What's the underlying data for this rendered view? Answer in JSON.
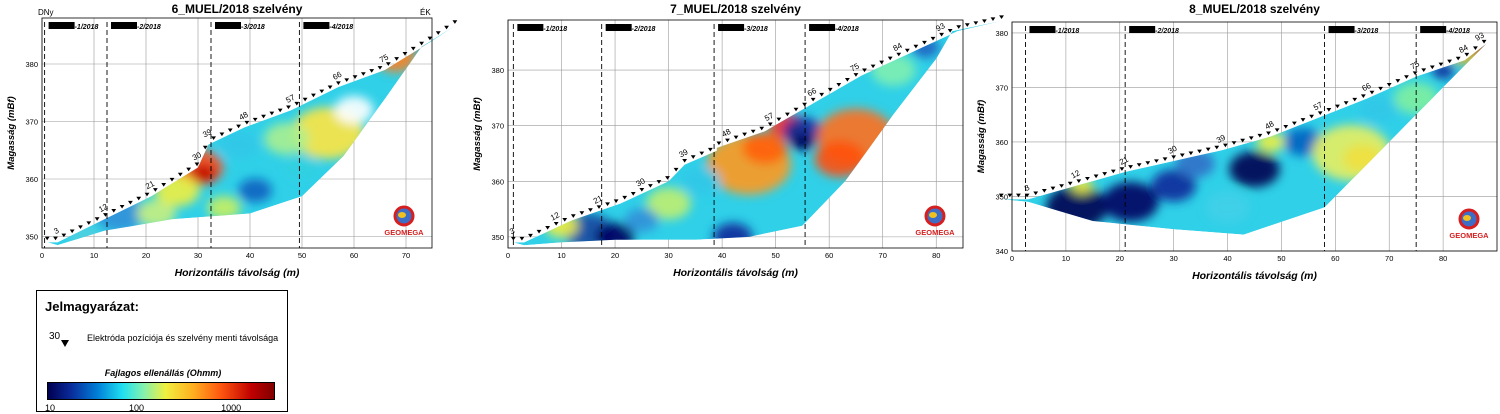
{
  "colors": {
    "electrode": "#000000",
    "grid": "#9a9a9a",
    "section_line": "#000000",
    "logo_red": "#d61f1f",
    "logo_blue": "#1f4fa8"
  },
  "chart_data": [
    {
      "type": "heatmap",
      "title": "6_MUEL/2018 szelvény",
      "xlabel": "Horizontális távolság (m)",
      "ylabel": "Magasság (mBf)",
      "xlim": [
        0,
        75
      ],
      "ylim": [
        348,
        388
      ],
      "x_ticks": [
        0,
        10,
        20,
        30,
        40,
        50,
        60,
        70
      ],
      "y_ticks": [
        350,
        360,
        370,
        380
      ],
      "direction_left": "DNy",
      "direction_right": "ÉK",
      "surface": [
        [
          1,
          349
        ],
        [
          3,
          349
        ],
        [
          12,
          353
        ],
        [
          21,
          357
        ],
        [
          30,
          362
        ],
        [
          32,
          366
        ],
        [
          39,
          369
        ],
        [
          48,
          372
        ],
        [
          57,
          376
        ],
        [
          66,
          379
        ],
        [
          75,
          384
        ],
        [
          80,
          387
        ]
      ],
      "bottom": [
        [
          3,
          348.5
        ],
        [
          12,
          351
        ],
        [
          25,
          353
        ],
        [
          40,
          354
        ],
        [
          50,
          357
        ],
        [
          58,
          364
        ],
        [
          66,
          374
        ],
        [
          73,
          383
        ]
      ],
      "crossings": [
        {
          "x": 0.5,
          "label": "-1/2018"
        },
        {
          "x": 12.5,
          "label": "-2/2018"
        },
        {
          "x": 32.5,
          "label": "-3/2018"
        },
        {
          "x": 49.5,
          "label": "-4/2018"
        }
      ],
      "electrode_labels": [
        {
          "x": 3,
          "label": "3"
        },
        {
          "x": 12,
          "label": "12"
        },
        {
          "x": 21,
          "label": "21"
        },
        {
          "x": 30,
          "label": "30"
        },
        {
          "x": 32,
          "label": "39"
        },
        {
          "x": 39,
          "label": "48"
        },
        {
          "x": 48,
          "label": "57"
        },
        {
          "x": 57,
          "label": "66"
        },
        {
          "x": 66,
          "label": "75"
        }
      ],
      "logo_text": "GEOMEGA"
    },
    {
      "type": "heatmap",
      "title": "7_MUEL/2018 szelvény",
      "xlabel": "Horizontális távolság (m)",
      "ylabel": "Magasság (mBf)",
      "xlim": [
        0,
        85
      ],
      "ylim": [
        348,
        389
      ],
      "x_ticks": [
        0,
        10,
        20,
        30,
        40,
        50,
        60,
        70,
        80
      ],
      "y_ticks": [
        350,
        360,
        370,
        380
      ],
      "surface": [
        [
          1,
          349
        ],
        [
          3,
          349
        ],
        [
          12,
          353
        ],
        [
          21,
          356
        ],
        [
          30,
          360
        ],
        [
          33,
          363
        ],
        [
          39,
          365.5
        ],
        [
          39,
          366
        ],
        [
          48,
          369
        ],
        [
          57,
          374
        ],
        [
          66,
          379
        ],
        [
          75,
          383
        ],
        [
          84,
          387
        ],
        [
          93,
          389
        ]
      ],
      "bottom": [
        [
          3,
          348.5
        ],
        [
          10,
          349
        ],
        [
          20,
          349.5
        ],
        [
          35,
          349.5
        ],
        [
          45,
          350
        ],
        [
          55,
          352
        ],
        [
          63,
          360
        ],
        [
          72,
          372
        ],
        [
          80,
          382
        ],
        [
          83,
          387
        ]
      ],
      "crossings": [
        {
          "x": 1,
          "label": "-1/2018"
        },
        {
          "x": 17.5,
          "label": "-2/2018"
        },
        {
          "x": 38.5,
          "label": "-3/2018"
        },
        {
          "x": 55.5,
          "label": "-4/2018"
        }
      ],
      "electrode_labels": [
        {
          "x": 1,
          "label": "3"
        },
        {
          "x": 9,
          "label": "12"
        },
        {
          "x": 17,
          "label": "21"
        },
        {
          "x": 25,
          "label": "30"
        },
        {
          "x": 33,
          "label": "39"
        },
        {
          "x": 41,
          "label": "48"
        },
        {
          "x": 49,
          "label": "57"
        },
        {
          "x": 57,
          "label": "66"
        },
        {
          "x": 65,
          "label": "75"
        },
        {
          "x": 73,
          "label": "84"
        },
        {
          "x": 81,
          "label": "93"
        }
      ],
      "logo_text": "GEOMEGA"
    },
    {
      "type": "heatmap",
      "title": "8_MUEL/2018 szelvény",
      "xlabel": "Horizontális távolság (m)",
      "ylabel": "Magasság (mBf)",
      "xlim": [
        0,
        90
      ],
      "ylim": [
        340,
        382
      ],
      "x_ticks": [
        0,
        10,
        20,
        30,
        40,
        50,
        60,
        70,
        80
      ],
      "y_ticks": [
        340,
        350,
        360,
        370,
        380
      ],
      "surface": [
        [
          -2,
          349.5
        ],
        [
          3,
          349.5
        ],
        [
          12,
          352
        ],
        [
          21,
          354.5
        ],
        [
          30,
          356.5
        ],
        [
          39,
          358.5
        ],
        [
          48,
          361
        ],
        [
          57,
          364.5
        ],
        [
          66,
          368
        ],
        [
          75,
          372
        ],
        [
          84,
          375
        ],
        [
          88,
          378
        ],
        [
          89,
          379
        ]
      ],
      "bottom": [
        [
          3,
          349
        ],
        [
          15,
          345.5
        ],
        [
          30,
          344
        ],
        [
          43,
          343
        ],
        [
          58,
          348
        ],
        [
          70,
          360
        ],
        [
          80,
          370
        ],
        [
          86,
          376
        ]
      ],
      "crossings": [
        {
          "x": 2.5,
          "label": "-1/2018"
        },
        {
          "x": 21,
          "label": "-2/2018"
        },
        {
          "x": 58,
          "label": "-3/2018"
        },
        {
          "x": 75,
          "label": "-4/2018"
        }
      ],
      "electrode_labels": [
        {
          "x": 3,
          "label": "3"
        },
        {
          "x": 12,
          "label": "12"
        },
        {
          "x": 21,
          "label": "21"
        },
        {
          "x": 30,
          "label": "30"
        },
        {
          "x": 39,
          "label": "39"
        },
        {
          "x": 48,
          "label": "48"
        },
        {
          "x": 57,
          "label": "57"
        },
        {
          "x": 66,
          "label": "66"
        },
        {
          "x": 75,
          "label": "75"
        },
        {
          "x": 84,
          "label": "84"
        },
        {
          "x": 87,
          "label": "93"
        }
      ],
      "logo_text": "GEOMEGA"
    }
  ],
  "legend": {
    "title": "Jelmagyarázat:",
    "marker_number": "30",
    "marker_text": "Elektróda pozíciója és szelvény menti távolsága",
    "scale_title": "Fajlagos ellenállás (Ohmm)",
    "scale_ticks": [
      {
        "value": 10,
        "label": "10"
      },
      {
        "value": 100,
        "label": "100"
      },
      {
        "value": 1000,
        "label": "1000"
      }
    ],
    "scale_range": [
      10,
      3000
    ],
    "scale_colors": [
      "#000050",
      "#0a2a9a",
      "#0080d8",
      "#20e0f0",
      "#80f0b0",
      "#f0f040",
      "#ffb020",
      "#ff5a10",
      "#c00000",
      "#800000"
    ]
  }
}
